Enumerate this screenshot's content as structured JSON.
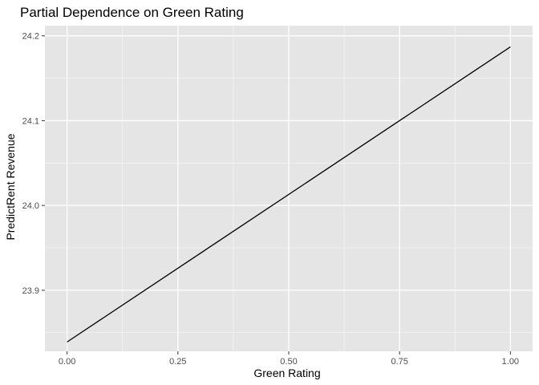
{
  "chart_data": {
    "type": "line",
    "title": "Partial Dependence on Green Rating",
    "xlabel": "Green Rating",
    "ylabel": "PredictRent Revenue",
    "xlim": [
      -0.05,
      1.05
    ],
    "ylim": [
      23.828,
      24.212
    ],
    "x_ticks": [
      0.0,
      0.25,
      0.5,
      0.75,
      1.0
    ],
    "x_tick_labels": [
      "0.00",
      "0.25",
      "0.50",
      "0.75",
      "1.00"
    ],
    "y_ticks": [
      23.9,
      24.0,
      24.1,
      24.2
    ],
    "y_tick_labels": [
      "23.9",
      "24.0",
      "24.1",
      "24.2"
    ],
    "grid": true,
    "colors": {
      "panel_bg": "#e5e5e5",
      "grid": "#ffffff",
      "line": "#000000",
      "tick": "#4d4d4d"
    },
    "series": [
      {
        "x": [
          0.0,
          1.0
        ],
        "y": [
          23.839,
          24.187
        ]
      }
    ]
  }
}
